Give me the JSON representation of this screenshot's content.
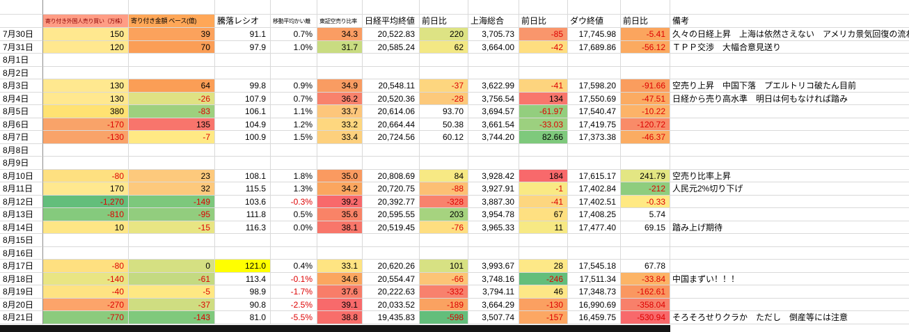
{
  "colors": {
    "negative_text": "#dd0000",
    "bottom_strip": "#151515",
    "highlight_yellow": "#ffff00",
    "gridline": "#d9d9d9"
  },
  "table": {
    "columns": [
      {
        "label": ""
      },
      {
        "label": "寄り付き外国人売り買い（万株）",
        "bg": "#ff9d85",
        "color": "#8b0000"
      },
      {
        "label": "寄り付き金額 ベース(億)",
        "bg": "#ffa757"
      },
      {
        "label": "騰落レシオ"
      },
      {
        "label": "移動平均かい離"
      },
      {
        "label": "東証空売り比率"
      },
      {
        "label": "日経平均終値"
      },
      {
        "label": "前日比"
      },
      {
        "label": "上海総合"
      },
      {
        "label": "前日比"
      },
      {
        "label": "ダウ終値"
      },
      {
        "label": "前日比"
      },
      {
        "label": "備考"
      }
    ],
    "rows": [
      {
        "date": "7月30日",
        "values": [
          "150",
          "39",
          "91.1",
          "0.7%",
          "34.3",
          "20,522.83",
          "220",
          "3,705.73",
          "-85",
          "17,745.98",
          "-5.41"
        ],
        "bgs": [
          "#ffe88f",
          "#fba25c",
          null,
          null,
          "#fa9d63",
          null,
          "#dde384",
          null,
          "#f9966c",
          null,
          "#fba55e"
        ],
        "remark": "久々の日経上昇　上海は依然さえない　アメリカ景気回復の流れ"
      },
      {
        "date": "7月31日",
        "values": [
          "120",
          "70",
          "97.9",
          "1.0%",
          "31.7",
          "20,585.24",
          "62",
          "3,664.00",
          "-42",
          "17,689.86",
          "-56.12"
        ],
        "bgs": [
          "#ffe88f",
          "#fb9e56",
          null,
          null,
          "#c9dc81",
          null,
          "#f3e884",
          null,
          "#fede80",
          null,
          "#fbaa60"
        ],
        "remark": "ＴＰＰ交渉　大幅合意見送り"
      },
      {
        "date": "8月1日",
        "values": [],
        "bgs": [],
        "remark": ""
      },
      {
        "date": "8月2日",
        "values": [],
        "bgs": [],
        "remark": ""
      },
      {
        "date": "8月3日",
        "values": [
          "130",
          "64",
          "99.8",
          "0.9%",
          "34.9",
          "20,548.11",
          "-37",
          "3,622.99",
          "-41",
          "17,598.20",
          "-91.66"
        ],
        "bgs": [
          "#ffe88f",
          "#fb9e56",
          null,
          null,
          "#f99c62",
          null,
          "#fdd67f",
          null,
          "#fdd47e",
          null,
          "#fa9d5e"
        ],
        "remark": "空売り上昇　中国下落　プエルトリコ破たん目前"
      },
      {
        "date": "8月4日",
        "values": [
          "130",
          "-26",
          "107.9",
          "0.7%",
          "36.2",
          "20,520.36",
          "-28",
          "3,756.54",
          "134",
          "17,550.69",
          "-47.51"
        ],
        "bgs": [
          "#ffe88f",
          "#dfe283",
          null,
          null,
          "#f8826c",
          null,
          "#fcc97b",
          null,
          "#f8766c",
          null,
          "#fbab62"
        ],
        "remark": "日経から売り高水準　明日は何もなければ踏み"
      },
      {
        "date": "8月5日",
        "values": [
          "380",
          "-83",
          "106.1",
          "1.1%",
          "33.7",
          "20,614.06",
          "93.70",
          "3,694.57",
          "-61.97",
          "17,540.47",
          "-10.22"
        ],
        "bgs": [
          "#ffe272",
          "#9ed07e",
          null,
          null,
          "#fdc67b",
          null,
          null,
          null,
          "#93ce7e",
          null,
          "#fcb368"
        ],
        "remark": ""
      },
      {
        "date": "8月6日",
        "values": [
          "-170",
          "135",
          "104.9",
          "1.2%",
          "33.2",
          "20,664.44",
          "50.38",
          "3,661.54",
          "-33.03",
          "17,419.75",
          "-120.72"
        ],
        "bgs": [
          "#f9a369",
          "#f8756c",
          null,
          null,
          "#fed77f",
          null,
          null,
          null,
          "#9cd07f",
          null,
          "#f98b68"
        ],
        "remark": ""
      },
      {
        "date": "8月7日",
        "values": [
          "-130",
          "-7",
          "100.9",
          "1.5%",
          "33.4",
          "20,724.56",
          "60.12",
          "3,744.20",
          "82.66",
          "17,373.38",
          "-46.37"
        ],
        "bgs": [
          "#f9a369",
          "#ffe984",
          null,
          null,
          "#fdd07d",
          null,
          null,
          null,
          "#7ec97c",
          null,
          "#fbac62"
        ],
        "remark": ""
      },
      {
        "date": "8月8日",
        "values": [],
        "bgs": [],
        "remark": ""
      },
      {
        "date": "8月9日",
        "values": [],
        "bgs": [],
        "remark": ""
      },
      {
        "date": "8月10日",
        "values": [
          "-80",
          "23",
          "108.1",
          "1.8%",
          "35.0",
          "20,808.69",
          "84",
          "3,928.42",
          "184",
          "17,615.17",
          "241.79"
        ],
        "bgs": [
          "#fee080",
          "#fdc97c",
          null,
          null,
          "#fa9a60",
          null,
          "#f7e984",
          null,
          "#f8696b",
          null,
          "#e3e683"
        ],
        "remark": "空売り比率上昇"
      },
      {
        "date": "8月11日",
        "values": [
          "170",
          "32",
          "115.5",
          "1.3%",
          "34.2",
          "20,720.75",
          "-88",
          "3,927.91",
          "-1",
          "17,402.84",
          "-212"
        ],
        "bgs": [
          "#ffe88f",
          "#fdc97c",
          null,
          null,
          "#fba65f",
          null,
          "#fcbf74",
          null,
          "#f9e984",
          null,
          "#8ecd7e"
        ],
        "remark": "人民元2%切り下げ"
      },
      {
        "date": "8月12日",
        "values": [
          "-1,270",
          "-149",
          "103.6",
          "-0.3%",
          "39.2",
          "20,392.77",
          "-328",
          "3,887.30",
          "-41",
          "17,402.51",
          "-0.33"
        ],
        "bgs": [
          "#63be7b",
          "#7dc87c",
          null,
          null,
          "#f8696b",
          null,
          "#f8826d",
          null,
          "#fdd67f",
          null,
          "#ffe983"
        ],
        "remark": ""
      },
      {
        "date": "8月13日",
        "values": [
          "-810",
          "-95",
          "111.8",
          "0.5%",
          "35.6",
          "20,595.55",
          "203",
          "3,954.78",
          "67",
          "17,408.25",
          "5.74"
        ],
        "bgs": [
          "#85ca7d",
          "#92cd7e",
          null,
          null,
          "#f98367",
          null,
          "#a6d37f",
          null,
          "#fee081",
          null,
          null
        ],
        "remark": ""
      },
      {
        "date": "8月14日",
        "values": [
          "10",
          "-15",
          "116.3",
          "0.0%",
          "38.1",
          "20,519.45",
          "-76",
          "3,965.33",
          "11",
          "17,477.40",
          "69.15"
        ],
        "bgs": [
          "#fee685",
          "#e8e583",
          null,
          null,
          "#f8766a",
          null,
          "#fede80",
          null,
          "#f7e984",
          null,
          null
        ],
        "remark": "踏み上げ期待"
      },
      {
        "date": "8月15日",
        "values": [],
        "bgs": [],
        "remark": ""
      },
      {
        "date": "8月16日",
        "values": [],
        "bgs": [],
        "remark": ""
      },
      {
        "date": "8月17日",
        "values": [
          "-80",
          "0",
          "121.0",
          "0.4%",
          "33.1",
          "20,620.26",
          "101",
          "3,993.67",
          "28",
          "17,545.18",
          "67.78"
        ],
        "bgs": [
          "#fee080",
          "#d5e082",
          "#ffff00",
          null,
          "#fee482",
          null,
          "#d7e183",
          null,
          "#fde887",
          null,
          null
        ],
        "remark": ""
      },
      {
        "date": "8月18日",
        "values": [
          "-140",
          "-61",
          "113.4",
          "-0.1%",
          "34.6",
          "20,554.47",
          "-66",
          "3,748.16",
          "-246",
          "17,511.34",
          "-33.84"
        ],
        "bgs": [
          "#e9e583",
          "#c4da81",
          null,
          null,
          "#fba65f",
          null,
          "#fcc476",
          null,
          "#63be7b",
          null,
          "#fcb466"
        ],
        "remark": "中国まずい！！！"
      },
      {
        "date": "8月19日",
        "values": [
          "-40",
          "-5",
          "98.9",
          "-1.7%",
          "37.6",
          "20,222.63",
          "-332",
          "3,794.11",
          "46",
          "17,348.73",
          "-162.61"
        ],
        "bgs": [
          "#fee382",
          "#fee883",
          null,
          null,
          "#f87d69",
          null,
          "#f8816d",
          null,
          "#fde786",
          null,
          "#fa9760"
        ],
        "remark": ""
      },
      {
        "date": "8月20日",
        "values": [
          "-270",
          "-37",
          "90.8",
          "-2.5%",
          "39.1",
          "20,033.52",
          "-189",
          "3,664.29",
          "-130",
          "16,990.69",
          "-358.04"
        ],
        "bgs": [
          "#fca46a",
          "#cfdd81",
          null,
          null,
          "#f86a6b",
          null,
          "#faa261",
          null,
          "#fba061",
          null,
          "#f8806a"
        ],
        "remark": ""
      },
      {
        "date": "8月21日",
        "values": [
          "-770",
          "-143",
          "81.0",
          "-5.5%",
          "38.8",
          "19,435.83",
          "-598",
          "3,507.74",
          "-157",
          "16,459.75",
          "-530.94"
        ],
        "bgs": [
          "#8bcb7d",
          "#7fc97c",
          null,
          null,
          "#f86e6a",
          null,
          "#63be7b",
          null,
          "#fca763",
          null,
          "#f8696b"
        ],
        "remark": "そろそろせりクラか　ただし　倒産等には注意"
      }
    ]
  }
}
